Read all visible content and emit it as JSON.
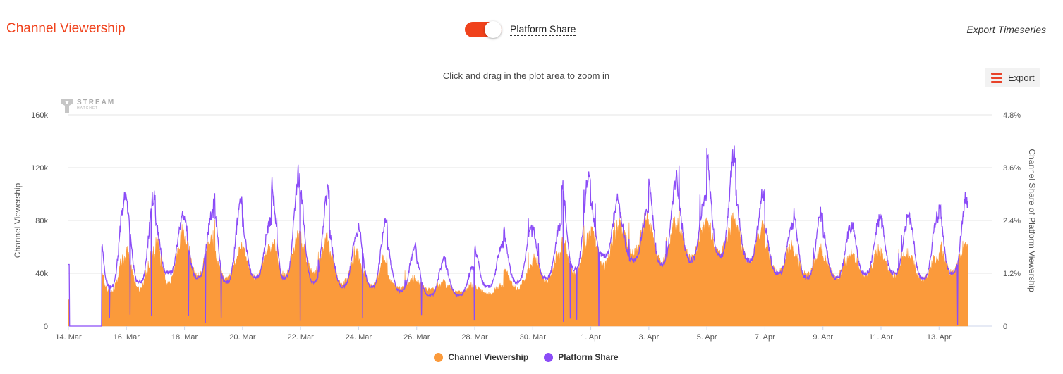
{
  "header": {
    "title": "Channel Viewership",
    "toggle_label": "Platform Share",
    "export_timeseries": "Export Timeseries"
  },
  "chart_header": {
    "zoom_hint": "Click and drag in the plot area to zoom in",
    "export_label": "Export"
  },
  "watermark": {
    "line1": "STREAM",
    "line2": "HATCHET"
  },
  "colors": {
    "accent": "#f0421c",
    "viewership": "#fb9a3b",
    "share": "#8b4cf7",
    "grid": "#e6e6e6"
  },
  "chart_data": {
    "type": "area",
    "title": "",
    "xlabel": "",
    "ylabel": "Channel Viewership",
    "y2label": "Channel Share of Platform Viewership",
    "ylim": [
      0,
      160000
    ],
    "y2lim": [
      0,
      4.8
    ],
    "y_ticks": [
      "0",
      "40k",
      "80k",
      "120k",
      "160k"
    ],
    "y2_ticks": [
      "0",
      "1.2%",
      "2.4%",
      "3.6%",
      "4.8%"
    ],
    "x_range": [
      "2023-03-14",
      "2023-04-14"
    ],
    "x_ticks": [
      "14. Mar",
      "16. Mar",
      "18. Mar",
      "20. Mar",
      "22. Mar",
      "24. Mar",
      "26. Mar",
      "28. Mar",
      "30. Mar",
      "1. Apr",
      "3. Apr",
      "5. Apr",
      "7. Apr",
      "9. Apr",
      "11. Apr",
      "13. Apr"
    ],
    "grid": true,
    "legend_position": "bottom-center",
    "x_dates": [
      "2023-03-14",
      "2023-03-15",
      "2023-03-16",
      "2023-03-17",
      "2023-03-18",
      "2023-03-19",
      "2023-03-20",
      "2023-03-21",
      "2023-03-22",
      "2023-03-23",
      "2023-03-24",
      "2023-03-25",
      "2023-03-26",
      "2023-03-27",
      "2023-03-28",
      "2023-03-29",
      "2023-03-30",
      "2023-03-31",
      "2023-04-01",
      "2023-04-02",
      "2023-04-03",
      "2023-04-04",
      "2023-04-05",
      "2023-04-06",
      "2023-04-07",
      "2023-04-08",
      "2023-04-09",
      "2023-04-10",
      "2023-04-11",
      "2023-04-12",
      "2023-04-13"
    ],
    "series": [
      {
        "name": "Channel Viewership",
        "axis": "left",
        "daily_low": [
          0,
          25000,
          28000,
          32000,
          38000,
          35000,
          36000,
          38000,
          40000,
          32000,
          30000,
          28000,
          27000,
          25000,
          24000,
          28000,
          34000,
          40000,
          45000,
          55000,
          48000,
          50000,
          55000,
          48000,
          40000,
          38000,
          37000,
          38000,
          38000,
          35000,
          40000
        ],
        "daily_peak": [
          0,
          55000,
          60000,
          75000,
          70000,
          62000,
          65000,
          75000,
          70000,
          60000,
          55000,
          38000,
          35000,
          32000,
          32000,
          48000,
          58000,
          72000,
          80000,
          85000,
          83000,
          83000,
          85000,
          82000,
          65000,
          60000,
          58000,
          60000,
          58000,
          56000,
          65000
        ]
      },
      {
        "name": "Platform Share",
        "axis": "right",
        "daily_low": [
          0,
          0.9,
          1.0,
          1.2,
          1.1,
          1.0,
          1.1,
          1.1,
          1.0,
          0.9,
          0.9,
          0.8,
          0.7,
          0.7,
          0.9,
          1.0,
          1.1,
          1.3,
          1.6,
          1.5,
          1.4,
          1.5,
          1.6,
          1.5,
          1.2,
          1.1,
          1.1,
          1.2,
          1.2,
          1.1,
          1.2
        ],
        "daily_peak": [
          1.4,
          3.1,
          3.1,
          2.6,
          2.6,
          3.0,
          2.5,
          3.6,
          3.3,
          2.2,
          2.5,
          1.9,
          1.6,
          1.4,
          1.9,
          2.3,
          2.4,
          3.6,
          3.0,
          2.7,
          3.5,
          3.1,
          4.1,
          3.1,
          2.4,
          2.7,
          2.3,
          2.5,
          2.6,
          2.6,
          3.0
        ]
      }
    ]
  }
}
